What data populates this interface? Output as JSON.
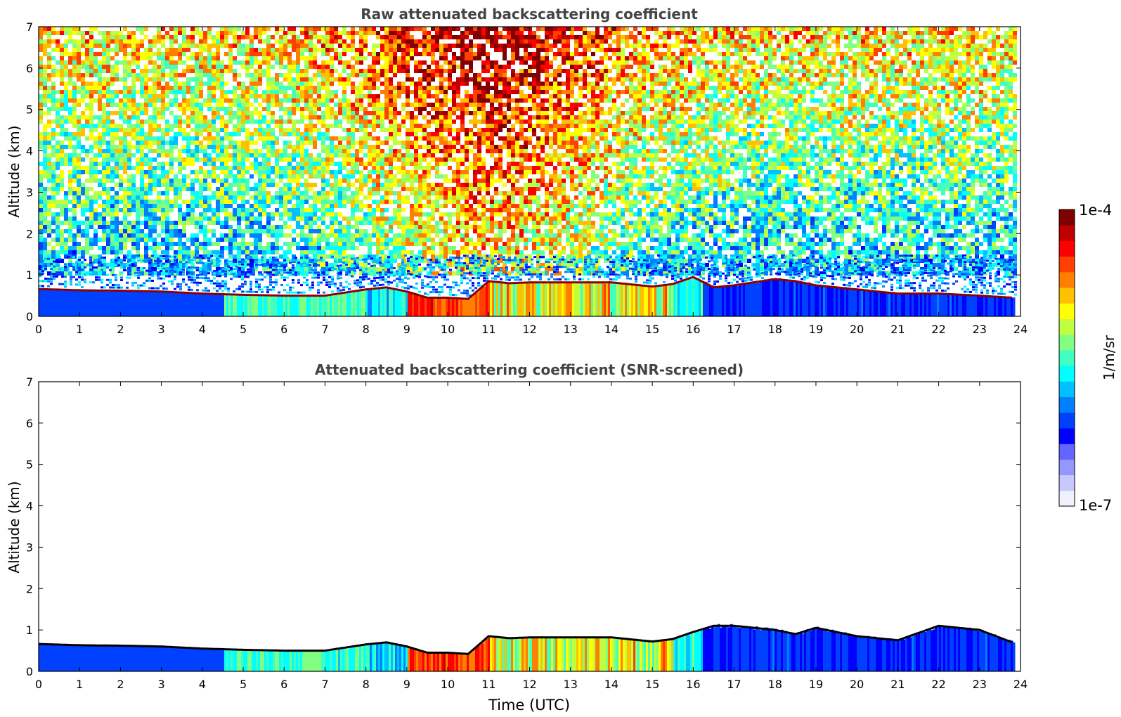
{
  "chart_data": [
    {
      "type": "heatmap",
      "title": "Raw attenuated backscattering coefficient",
      "xlabel": "",
      "ylabel": "Altitude (km)",
      "xlim": [
        0,
        24
      ],
      "ylim": [
        0,
        7
      ],
      "x_ticks": [
        "0",
        "1",
        "2",
        "3",
        "4",
        "5",
        "6",
        "7",
        "8",
        "9",
        "10",
        "11",
        "12",
        "13",
        "14",
        "15",
        "16",
        "17",
        "18",
        "19",
        "20",
        "21",
        "22",
        "23",
        "24"
      ],
      "y_ticks": [
        "0",
        "1",
        "2",
        "3",
        "4",
        "5",
        "6",
        "7"
      ],
      "noise_background": true,
      "series": [
        {
          "name": "cloud/aerosol layer top height (km)",
          "x": [
            0,
            1,
            2,
            3,
            4,
            5,
            6,
            7,
            8,
            8.5,
            9,
            9.5,
            10,
            10.5,
            11,
            11.5,
            12,
            13,
            14,
            15,
            15.5,
            16,
            16.5,
            17,
            18,
            18.5,
            19,
            20,
            20.5,
            21,
            22,
            23,
            23.8
          ],
          "values": [
            0.66,
            0.63,
            0.62,
            0.6,
            0.55,
            0.52,
            0.5,
            0.5,
            0.65,
            0.7,
            0.6,
            0.45,
            0.45,
            0.42,
            0.85,
            0.8,
            0.82,
            0.82,
            0.82,
            0.72,
            0.78,
            0.95,
            0.7,
            0.75,
            0.9,
            0.85,
            0.75,
            0.65,
            0.6,
            0.55,
            0.55,
            0.5,
            0.45
          ]
        }
      ]
    },
    {
      "type": "heatmap",
      "title": "Attenuated backscattering coefficient (SNR-screened)",
      "xlabel": "Time (UTC)",
      "ylabel": "Altitude (km)",
      "xlim": [
        0,
        24
      ],
      "ylim": [
        0,
        7
      ],
      "x_ticks": [
        "0",
        "1",
        "2",
        "3",
        "4",
        "5",
        "6",
        "7",
        "8",
        "9",
        "10",
        "11",
        "12",
        "13",
        "14",
        "15",
        "16",
        "17",
        "18",
        "19",
        "20",
        "21",
        "22",
        "23",
        "24"
      ],
      "y_ticks": [
        "0",
        "1",
        "2",
        "3",
        "4",
        "5",
        "6",
        "7"
      ],
      "noise_background": false,
      "series": [
        {
          "name": "cloud/aerosol layer top height (km)",
          "x": [
            0,
            1,
            2,
            3,
            4,
            5,
            6,
            7,
            8,
            8.5,
            9,
            9.5,
            10,
            10.5,
            11,
            11.5,
            12,
            13,
            14,
            15,
            15.5,
            16,
            16.5,
            17,
            18,
            18.5,
            19,
            20,
            20.5,
            21,
            22,
            23,
            23.8
          ],
          "values": [
            0.66,
            0.63,
            0.62,
            0.6,
            0.55,
            0.52,
            0.5,
            0.5,
            0.65,
            0.7,
            0.6,
            0.45,
            0.45,
            0.42,
            0.85,
            0.8,
            0.82,
            0.82,
            0.82,
            0.72,
            0.78,
            0.95,
            1.1,
            1.1,
            1.0,
            0.9,
            1.05,
            0.85,
            0.8,
            0.75,
            1.1,
            1.0,
            0.7
          ]
        }
      ]
    }
  ],
  "colorbar": {
    "max_label": "1e-4",
    "min_label": "1e-7",
    "unit_label": "1/m/sr",
    "colors": [
      "#f0f0ff",
      "#c8c8ff",
      "#9696ff",
      "#6464ff",
      "#0000ff",
      "#0040ff",
      "#0080ff",
      "#00c0ff",
      "#00ffff",
      "#40ffc0",
      "#80ff80",
      "#c0ff40",
      "#ffff00",
      "#ffc000",
      "#ff8000",
      "#ff4000",
      "#ff0000",
      "#c00000",
      "#800000"
    ]
  }
}
